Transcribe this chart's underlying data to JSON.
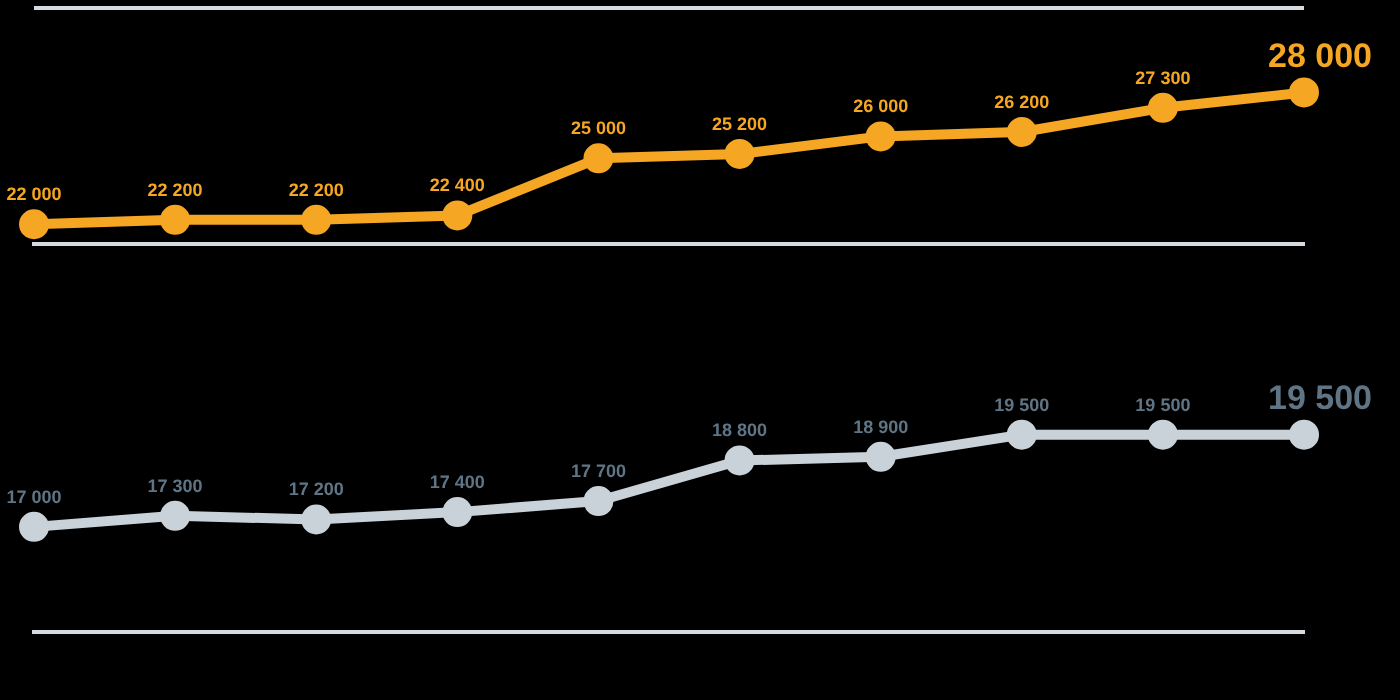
{
  "chart_data": [
    {
      "type": "line",
      "categories": [
        null,
        null,
        null,
        null,
        null,
        null,
        null,
        null,
        null,
        null
      ],
      "tick_labels": false,
      "marker": "circle",
      "series": [
        {
          "color": "#f5a623",
          "values": [
            22000,
            22200,
            22200,
            22400,
            25000,
            25200,
            26000,
            26200,
            27300,
            28000
          ],
          "value_labels": [
            "22 000",
            "22 200",
            "22 200",
            "22 400",
            "25 000",
            "25 200",
            "26 000",
            "26 200",
            "27 300",
            "28 000"
          ]
        }
      ]
    },
    {
      "type": "line",
      "categories": [
        null,
        null,
        null,
        null,
        null,
        null,
        null,
        null,
        null,
        null
      ],
      "tick_labels": false,
      "marker": "circle",
      "series": [
        {
          "color": "#c9d2d8",
          "values": [
            17000,
            17300,
            17200,
            17400,
            17700,
            18800,
            18900,
            19500,
            19500,
            19500
          ],
          "value_labels": [
            "17 000",
            "17 300",
            "17 200",
            "17 400",
            "17 700",
            "18 800",
            "18 900",
            "19 500",
            "19 500",
            "19 500"
          ]
        }
      ]
    }
  ]
}
